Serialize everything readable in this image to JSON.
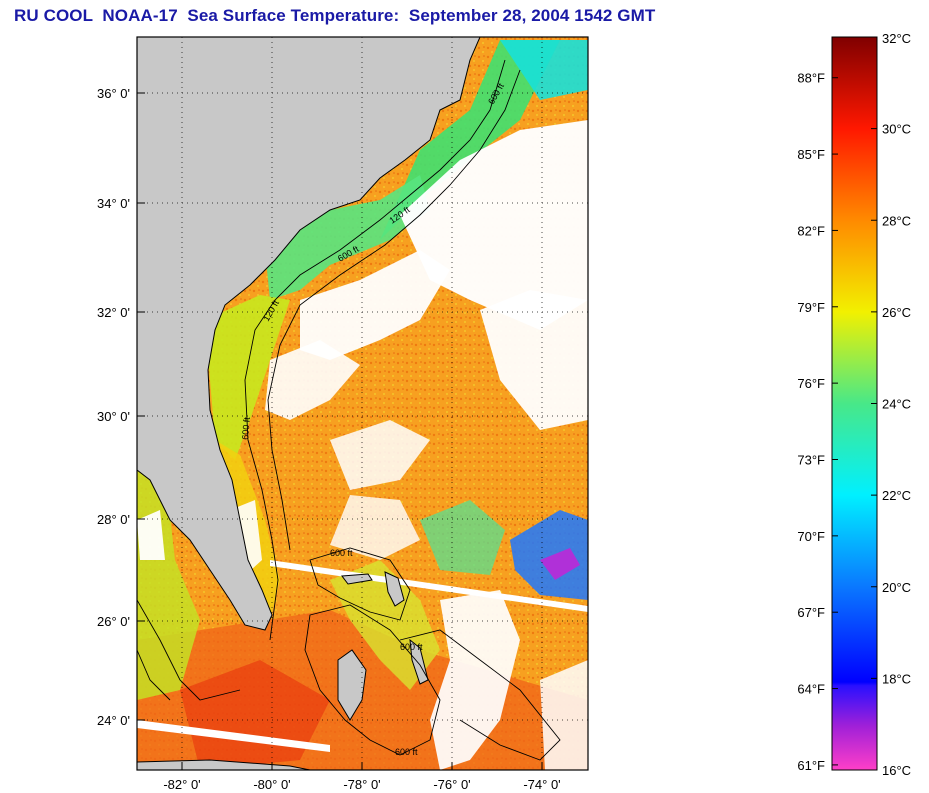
{
  "title": "RU COOL  NOAA-17  Sea Surface Temperature:  September 28, 2004 1542 GMT",
  "colors": {
    "title": "#1a1aa6",
    "land": "#c8c8c8",
    "frame": "#000000"
  },
  "map": {
    "lat_labels": [
      "36° 0'",
      "34° 0'",
      "32° 0'",
      "30° 0'",
      "28° 0'",
      "26° 0'",
      "24° 0'"
    ],
    "lon_labels": [
      "-82° 0'",
      "-80° 0'",
      "-78° 0'",
      "-76° 0'",
      "-74° 0'"
    ],
    "isobath_labels": [
      "600 ft",
      "120 ft",
      "600 ft",
      "120 ft",
      "600 ft",
      "600 ft",
      "600 ft",
      "600 ft"
    ]
  },
  "colorbar": {
    "fahrenheit_labels": [
      "88°F",
      "85°F",
      "82°F",
      "79°F",
      "76°F",
      "73°F",
      "70°F",
      "67°F",
      "64°F",
      "61°F"
    ],
    "celsius_labels": [
      "32°C",
      "30°C",
      "28°C",
      "26°C",
      "24°C",
      "22°C",
      "20°C",
      "18°C",
      "16°C"
    ],
    "range_c": [
      16,
      32
    ],
    "range_f": [
      61,
      89.6
    ]
  }
}
